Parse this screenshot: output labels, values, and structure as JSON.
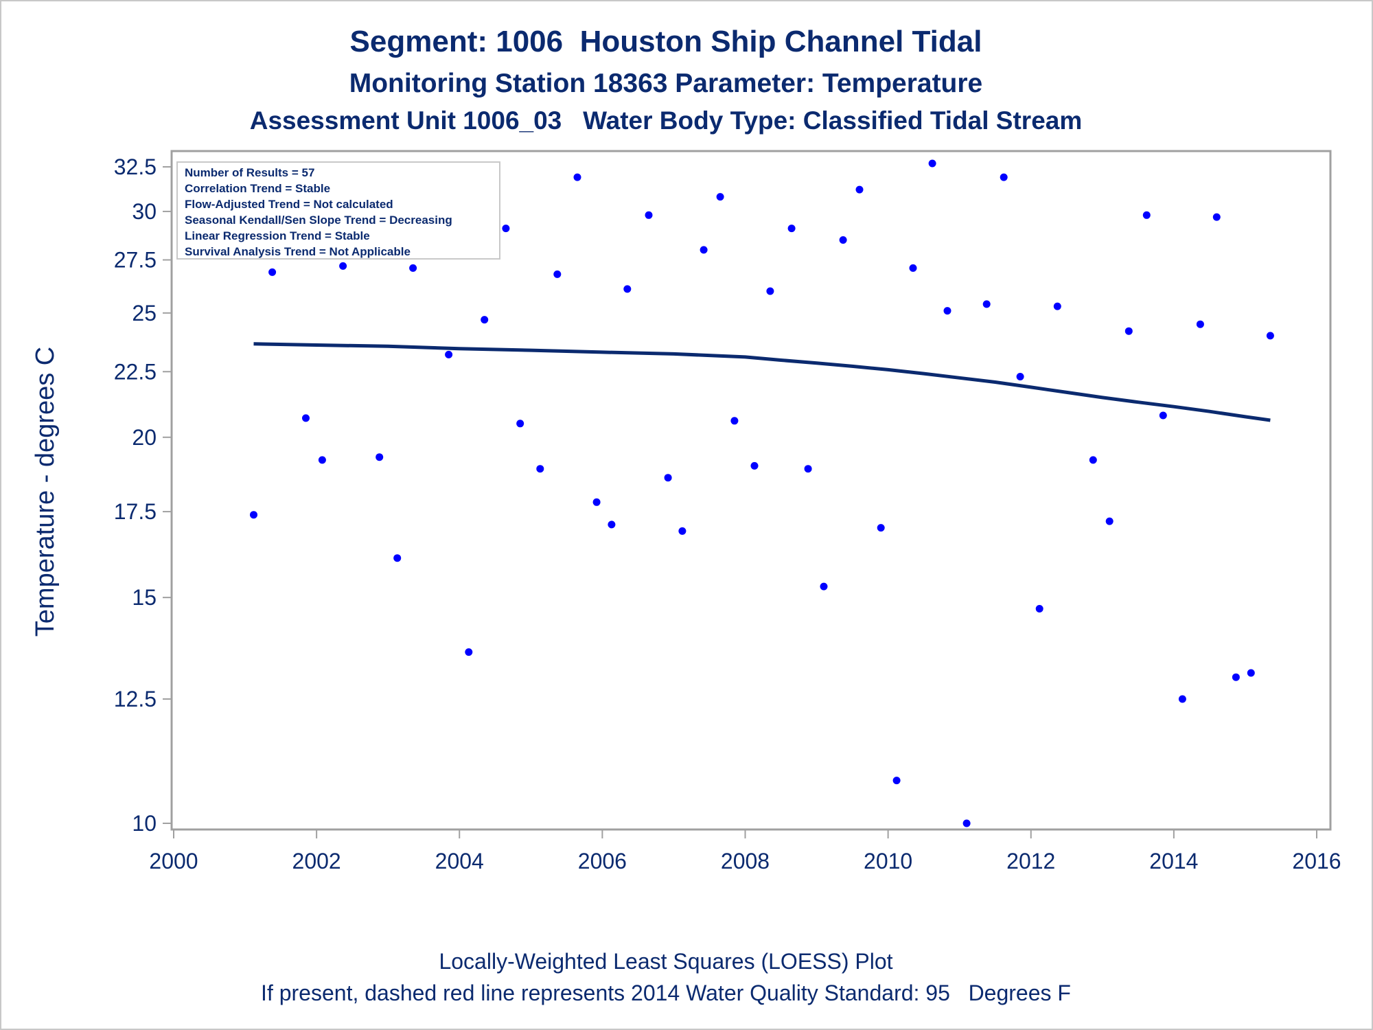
{
  "chart_data": {
    "type": "scatter",
    "title": "Segment: 1006  Houston Ship Channel Tidal",
    "subtitle": "Monitoring Station 18363 Parameter: Temperature",
    "subtitle2": "Assessment Unit 1006_03   Water Body Type: Classified Tidal Stream",
    "xlabel": "",
    "ylabel": "Temperature - degrees C",
    "xlim": [
      2000,
      2016
    ],
    "ylim": [
      10,
      32.5
    ],
    "y_scale": "log",
    "x_ticks": [
      2000,
      2002,
      2004,
      2006,
      2008,
      2010,
      2012,
      2014,
      2016
    ],
    "x_tick_labels": [
      "2000",
      "2002",
      "2004",
      "2006",
      "2008",
      "2010",
      "2012",
      "2014",
      "2016"
    ],
    "y_ticks": [
      10,
      12.5,
      15,
      17.5,
      20,
      22.5,
      25,
      27.5,
      30,
      32.5
    ],
    "y_tick_labels": [
      "10",
      "12.5",
      "15",
      "17.5",
      "20",
      "22.5",
      "25",
      "27.5",
      "30",
      "32.5"
    ],
    "grid": false,
    "legend_position": "top-left",
    "legend": [
      "Number of Results = 57",
      "Correlation Trend = Stable",
      "Flow-Adjusted Trend = Not calculated",
      "Seasonal Kendall/Sen Slope Trend = Decreasing",
      "Linear Regression Trend = Stable",
      "Survival Analysis Trend = Not Applicable"
    ],
    "footnotes": [
      "Locally-Weighted Least Squares (LOESS) Plot",
      "If present, dashed red line represents 2014 Water Quality Standard: 95   Degrees F"
    ],
    "colors": {
      "points": "#0000ff",
      "loess": "#0b2a6f",
      "text": "#0b2a6f",
      "axis": "#a0a0a0"
    },
    "series": [
      {
        "type": "scatter",
        "points": [
          [
            2001.12,
            17.4
          ],
          [
            2001.38,
            26.9
          ],
          [
            2001.65,
            31.0
          ],
          [
            2001.85,
            20.7
          ],
          [
            2002.08,
            19.2
          ],
          [
            2002.37,
            27.2
          ],
          [
            2002.62,
            29.4
          ],
          [
            2002.88,
            19.3
          ],
          [
            2003.13,
            16.1
          ],
          [
            2003.35,
            27.1
          ],
          [
            2003.65,
            29.9
          ],
          [
            2003.85,
            23.2
          ],
          [
            2004.13,
            13.6
          ],
          [
            2004.35,
            24.7
          ],
          [
            2004.65,
            29.1
          ],
          [
            2004.85,
            20.5
          ],
          [
            2005.13,
            18.9
          ],
          [
            2005.37,
            26.8
          ],
          [
            2005.65,
            31.9
          ],
          [
            2005.92,
            17.8
          ],
          [
            2006.13,
            17.1
          ],
          [
            2006.35,
            26.1
          ],
          [
            2006.65,
            29.8
          ],
          [
            2006.92,
            18.6
          ],
          [
            2007.12,
            16.9
          ],
          [
            2007.42,
            28.0
          ],
          [
            2007.65,
            30.8
          ],
          [
            2007.85,
            20.6
          ],
          [
            2008.13,
            19.0
          ],
          [
            2008.35,
            26.0
          ],
          [
            2008.65,
            29.1
          ],
          [
            2008.88,
            18.9
          ],
          [
            2009.1,
            15.3
          ],
          [
            2009.37,
            28.5
          ],
          [
            2009.6,
            31.2
          ],
          [
            2009.9,
            17.0
          ],
          [
            2010.12,
            10.8
          ],
          [
            2010.35,
            27.1
          ],
          [
            2010.62,
            32.7
          ],
          [
            2010.83,
            25.1
          ],
          [
            2011.1,
            10.0
          ],
          [
            2011.38,
            25.4
          ],
          [
            2011.62,
            31.9
          ],
          [
            2011.85,
            22.3
          ],
          [
            2012.12,
            14.7
          ],
          [
            2012.37,
            25.3
          ],
          [
            2012.87,
            19.2
          ],
          [
            2013.1,
            17.2
          ],
          [
            2013.37,
            24.2
          ],
          [
            2013.62,
            29.8
          ],
          [
            2013.85,
            20.8
          ],
          [
            2014.12,
            12.5
          ],
          [
            2014.37,
            24.5
          ],
          [
            2014.6,
            29.7
          ],
          [
            2014.87,
            13.0
          ],
          [
            2015.08,
            13.1
          ],
          [
            2015.35,
            24.0
          ]
        ]
      },
      {
        "type": "line",
        "points": [
          [
            2001.12,
            23.65
          ],
          [
            2002.0,
            23.6
          ],
          [
            2003.0,
            23.55
          ],
          [
            2004.0,
            23.45
          ],
          [
            2005.0,
            23.38
          ],
          [
            2006.0,
            23.3
          ],
          [
            2007.0,
            23.23
          ],
          [
            2008.0,
            23.1
          ],
          [
            2008.5,
            22.97
          ],
          [
            2009.0,
            22.85
          ],
          [
            2009.5,
            22.72
          ],
          [
            2010.0,
            22.58
          ],
          [
            2010.5,
            22.42
          ],
          [
            2011.0,
            22.25
          ],
          [
            2011.5,
            22.08
          ],
          [
            2012.0,
            21.88
          ],
          [
            2012.5,
            21.68
          ],
          [
            2013.0,
            21.48
          ],
          [
            2013.5,
            21.3
          ],
          [
            2014.0,
            21.13
          ],
          [
            2014.5,
            20.95
          ],
          [
            2015.0,
            20.75
          ],
          [
            2015.35,
            20.62
          ]
        ]
      }
    ]
  }
}
